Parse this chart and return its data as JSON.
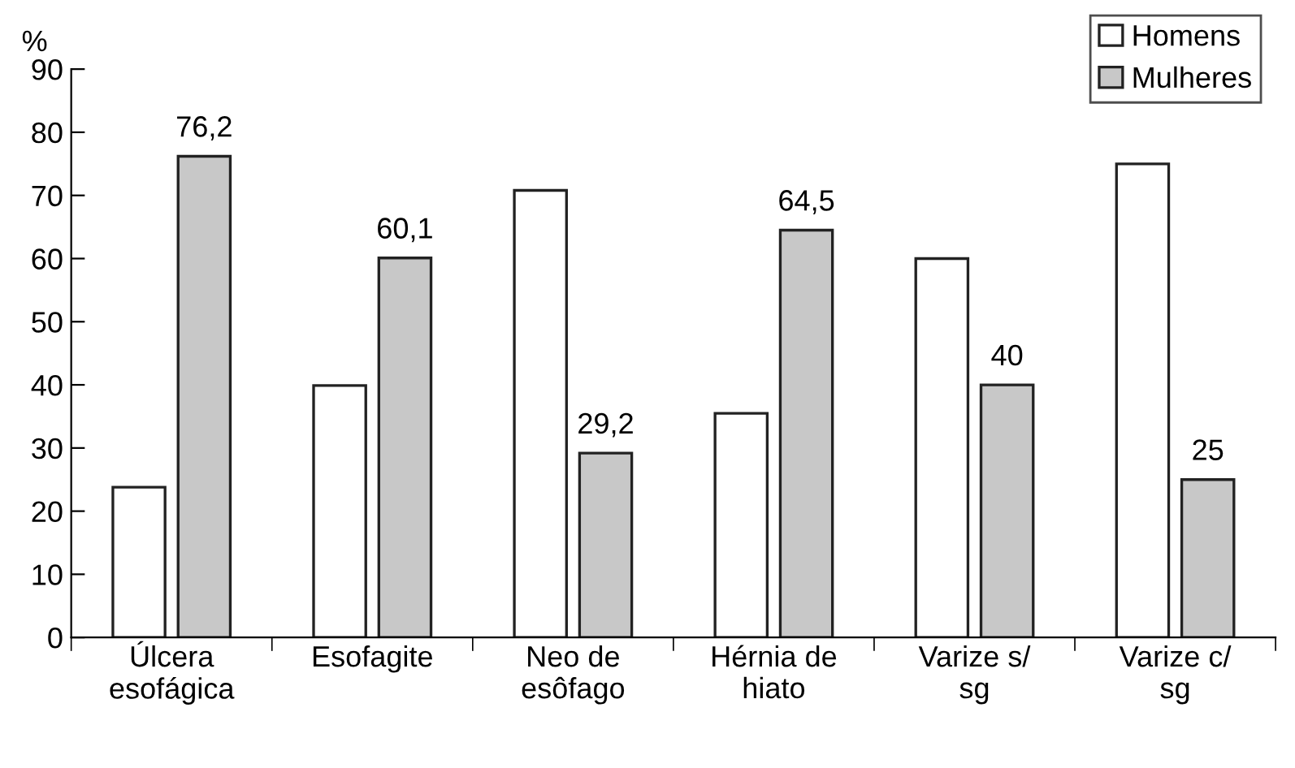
{
  "chart_data": {
    "type": "bar",
    "ylabel": "%",
    "categories": [
      "Úlcera\nesofágica",
      "Esofagite",
      "Neo de\nesôfago",
      "Hérnia de\nhiato",
      "Varize s/\nsg",
      "Varize c/\nsg"
    ],
    "series": [
      {
        "name": "Homens",
        "color": "#ffffff",
        "values": [
          23.8,
          39.9,
          70.8,
          35.5,
          60,
          75
        ]
      },
      {
        "name": "Mulheres",
        "color": "#c8c8c8",
        "values": [
          76.2,
          60.1,
          29.2,
          64.5,
          40,
          25
        ],
        "value_labels": [
          "76,2",
          "60,1",
          "29,2",
          "64,5",
          "40",
          "25"
        ]
      }
    ],
    "ylim": [
      0,
      90
    ],
    "yticks": [
      0,
      10,
      20,
      30,
      40,
      50,
      60,
      70,
      80,
      90
    ],
    "grid": false,
    "legend": "top right"
  }
}
